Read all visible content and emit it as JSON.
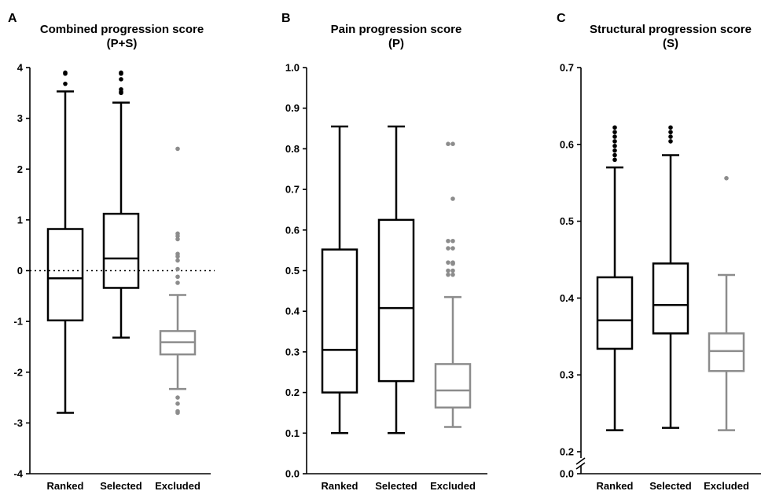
{
  "chart_data": [
    {
      "type": "box",
      "panel_label": "A",
      "title": "Combined progression score",
      "subtitle": "(P+S)",
      "categories": [
        "Ranked",
        "Selected",
        "Excluded"
      ],
      "ylim": [
        -4,
        4
      ],
      "yticks": [
        "4",
        "3",
        "2",
        "1",
        "0",
        "-1",
        "-2",
        "-3",
        "-4"
      ],
      "ytick_values": [
        4,
        3,
        2,
        1,
        0,
        -1,
        -2,
        -3,
        -4
      ],
      "reference_line": 0,
      "colors": [
        "#000000",
        "#000000",
        "#8c8c8c"
      ],
      "boxes": [
        {
          "min": -2.8,
          "q1": -0.98,
          "median": -0.15,
          "q3": 0.82,
          "max": 3.53,
          "outliers": [
            3.9,
            3.88,
            3.68
          ]
        },
        {
          "min": -1.32,
          "q1": -0.34,
          "median": 0.24,
          "q3": 1.12,
          "max": 3.31,
          "outliers": [
            3.9,
            3.88,
            3.77,
            3.57,
            3.52,
            3.5
          ]
        },
        {
          "min": -2.33,
          "q1": -1.65,
          "median": -1.41,
          "q3": -1.19,
          "max": -0.48,
          "outliers": [
            2.4,
            0.73,
            0.68,
            0.62,
            0.33,
            0.28,
            0.2,
            0.03,
            -0.12,
            -0.24,
            -2.5,
            -2.62,
            -2.77,
            -2.8
          ]
        }
      ]
    },
    {
      "type": "box",
      "panel_label": "B",
      "title": "Pain progression score",
      "subtitle": "(P)",
      "categories": [
        "Ranked",
        "Selected",
        "Excluded"
      ],
      "ylim": [
        0,
        1
      ],
      "yticks": [
        "1.0",
        "0.9",
        "0.8",
        "0.7",
        "0.6",
        "0.5",
        "0.4",
        "0.3",
        "0.2",
        "0.1",
        "0.0"
      ],
      "ytick_values": [
        1.0,
        0.9,
        0.8,
        0.7,
        0.6,
        0.5,
        0.4,
        0.3,
        0.2,
        0.1,
        0.0
      ],
      "colors": [
        "#000000",
        "#000000",
        "#8c8c8c"
      ],
      "boxes": [
        {
          "min": 0.1,
          "q1": 0.2,
          "median": 0.305,
          "q3": 0.552,
          "max": 0.855,
          "outliers": []
        },
        {
          "min": 0.1,
          "q1": 0.228,
          "median": 0.408,
          "q3": 0.625,
          "max": 0.855,
          "outliers": []
        },
        {
          "min": 0.115,
          "q1": 0.163,
          "median": 0.205,
          "q3": 0.27,
          "max": 0.435,
          "outliers": [
            0.812,
            0.812,
            0.677,
            0.573,
            0.573,
            0.555,
            0.555,
            0.52,
            0.52,
            0.518,
            0.517,
            0.5,
            0.5,
            0.49,
            0.49
          ]
        }
      ]
    },
    {
      "type": "box",
      "panel_label": "C",
      "title": "Structural progression score",
      "subtitle": "(S)",
      "categories": [
        "Ranked",
        "Selected",
        "Excluded"
      ],
      "ylim": [
        0.2,
        0.7
      ],
      "axis_break": true,
      "yticks": [
        "0.7",
        "0.6",
        "0.5",
        "0.4",
        "0.3",
        "0.2",
        "0.0"
      ],
      "ytick_values": [
        0.7,
        0.6,
        0.5,
        0.4,
        0.3,
        0.2,
        0.0
      ],
      "colors": [
        "#000000",
        "#000000",
        "#8c8c8c"
      ],
      "boxes": [
        {
          "min": 0.228,
          "q1": 0.334,
          "median": 0.371,
          "q3": 0.427,
          "max": 0.57,
          "outliers": [
            0.622,
            0.616,
            0.61,
            0.604,
            0.598,
            0.592,
            0.586,
            0.58
          ]
        },
        {
          "min": 0.231,
          "q1": 0.354,
          "median": 0.391,
          "q3": 0.445,
          "max": 0.586,
          "outliers": [
            0.622,
            0.616,
            0.61,
            0.604
          ]
        },
        {
          "min": 0.228,
          "q1": 0.305,
          "median": 0.331,
          "q3": 0.354,
          "max": 0.43,
          "outliers": [
            0.556
          ]
        }
      ]
    }
  ]
}
